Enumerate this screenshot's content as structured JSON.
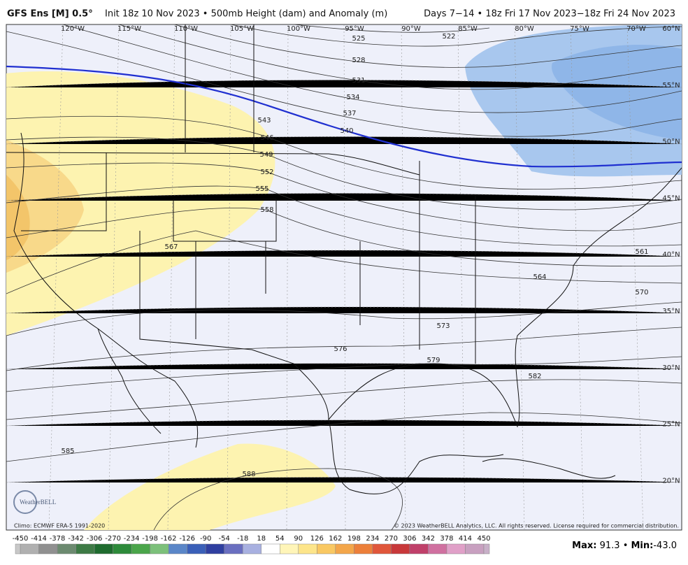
{
  "header": {
    "model": "GFS Ens [M] 0.5°",
    "init": "Init 18z 10 Nov 2023 • 500mb Height (dam) and Anomaly (m)",
    "valid": "Days 7−14 • 18z Fri 17 Nov 2023−18z Fri 24 Nov 2023"
  },
  "map": {
    "lon_labels": [
      "120°W",
      "115°W",
      "110°W",
      "105°W",
      "100°W",
      "95°W",
      "90°W",
      "85°W",
      "80°W",
      "75°W",
      "70°W"
    ],
    "lat_labels": [
      "60°N",
      "55°N",
      "50°N",
      "45°N",
      "40°N",
      "35°N",
      "30°N",
      "25°N",
      "20°N"
    ],
    "contour_labels": [
      "522",
      "525",
      "528",
      "531",
      "534",
      "537",
      "540",
      "543",
      "546",
      "549",
      "552",
      "555",
      "558",
      "567",
      "561",
      "564",
      "570",
      "573",
      "576",
      "579",
      "582",
      "585",
      "588"
    ],
    "climo": "Climo: ECMWF ERA-5 1991-2020",
    "copyright": "© 2023 WeatherBELL Analytics, LLC. All rights reserved. License required for commercial distribution.",
    "logo": "WeatherBELL"
  },
  "colorbar": {
    "labels": [
      "-450",
      "-414",
      "-378",
      "-342",
      "-306",
      "-270",
      "-234",
      "-198",
      "-162",
      "-126",
      "-90",
      "-54",
      "-18",
      "18",
      "54",
      "90",
      "126",
      "162",
      "198",
      "234",
      "270",
      "306",
      "342",
      "378",
      "414",
      "450"
    ]
  },
  "stats": {
    "max_label": "Max:",
    "max_value": "91.3",
    "separator": "•",
    "min_label": "Min:",
    "min_value": "-43.0"
  }
}
